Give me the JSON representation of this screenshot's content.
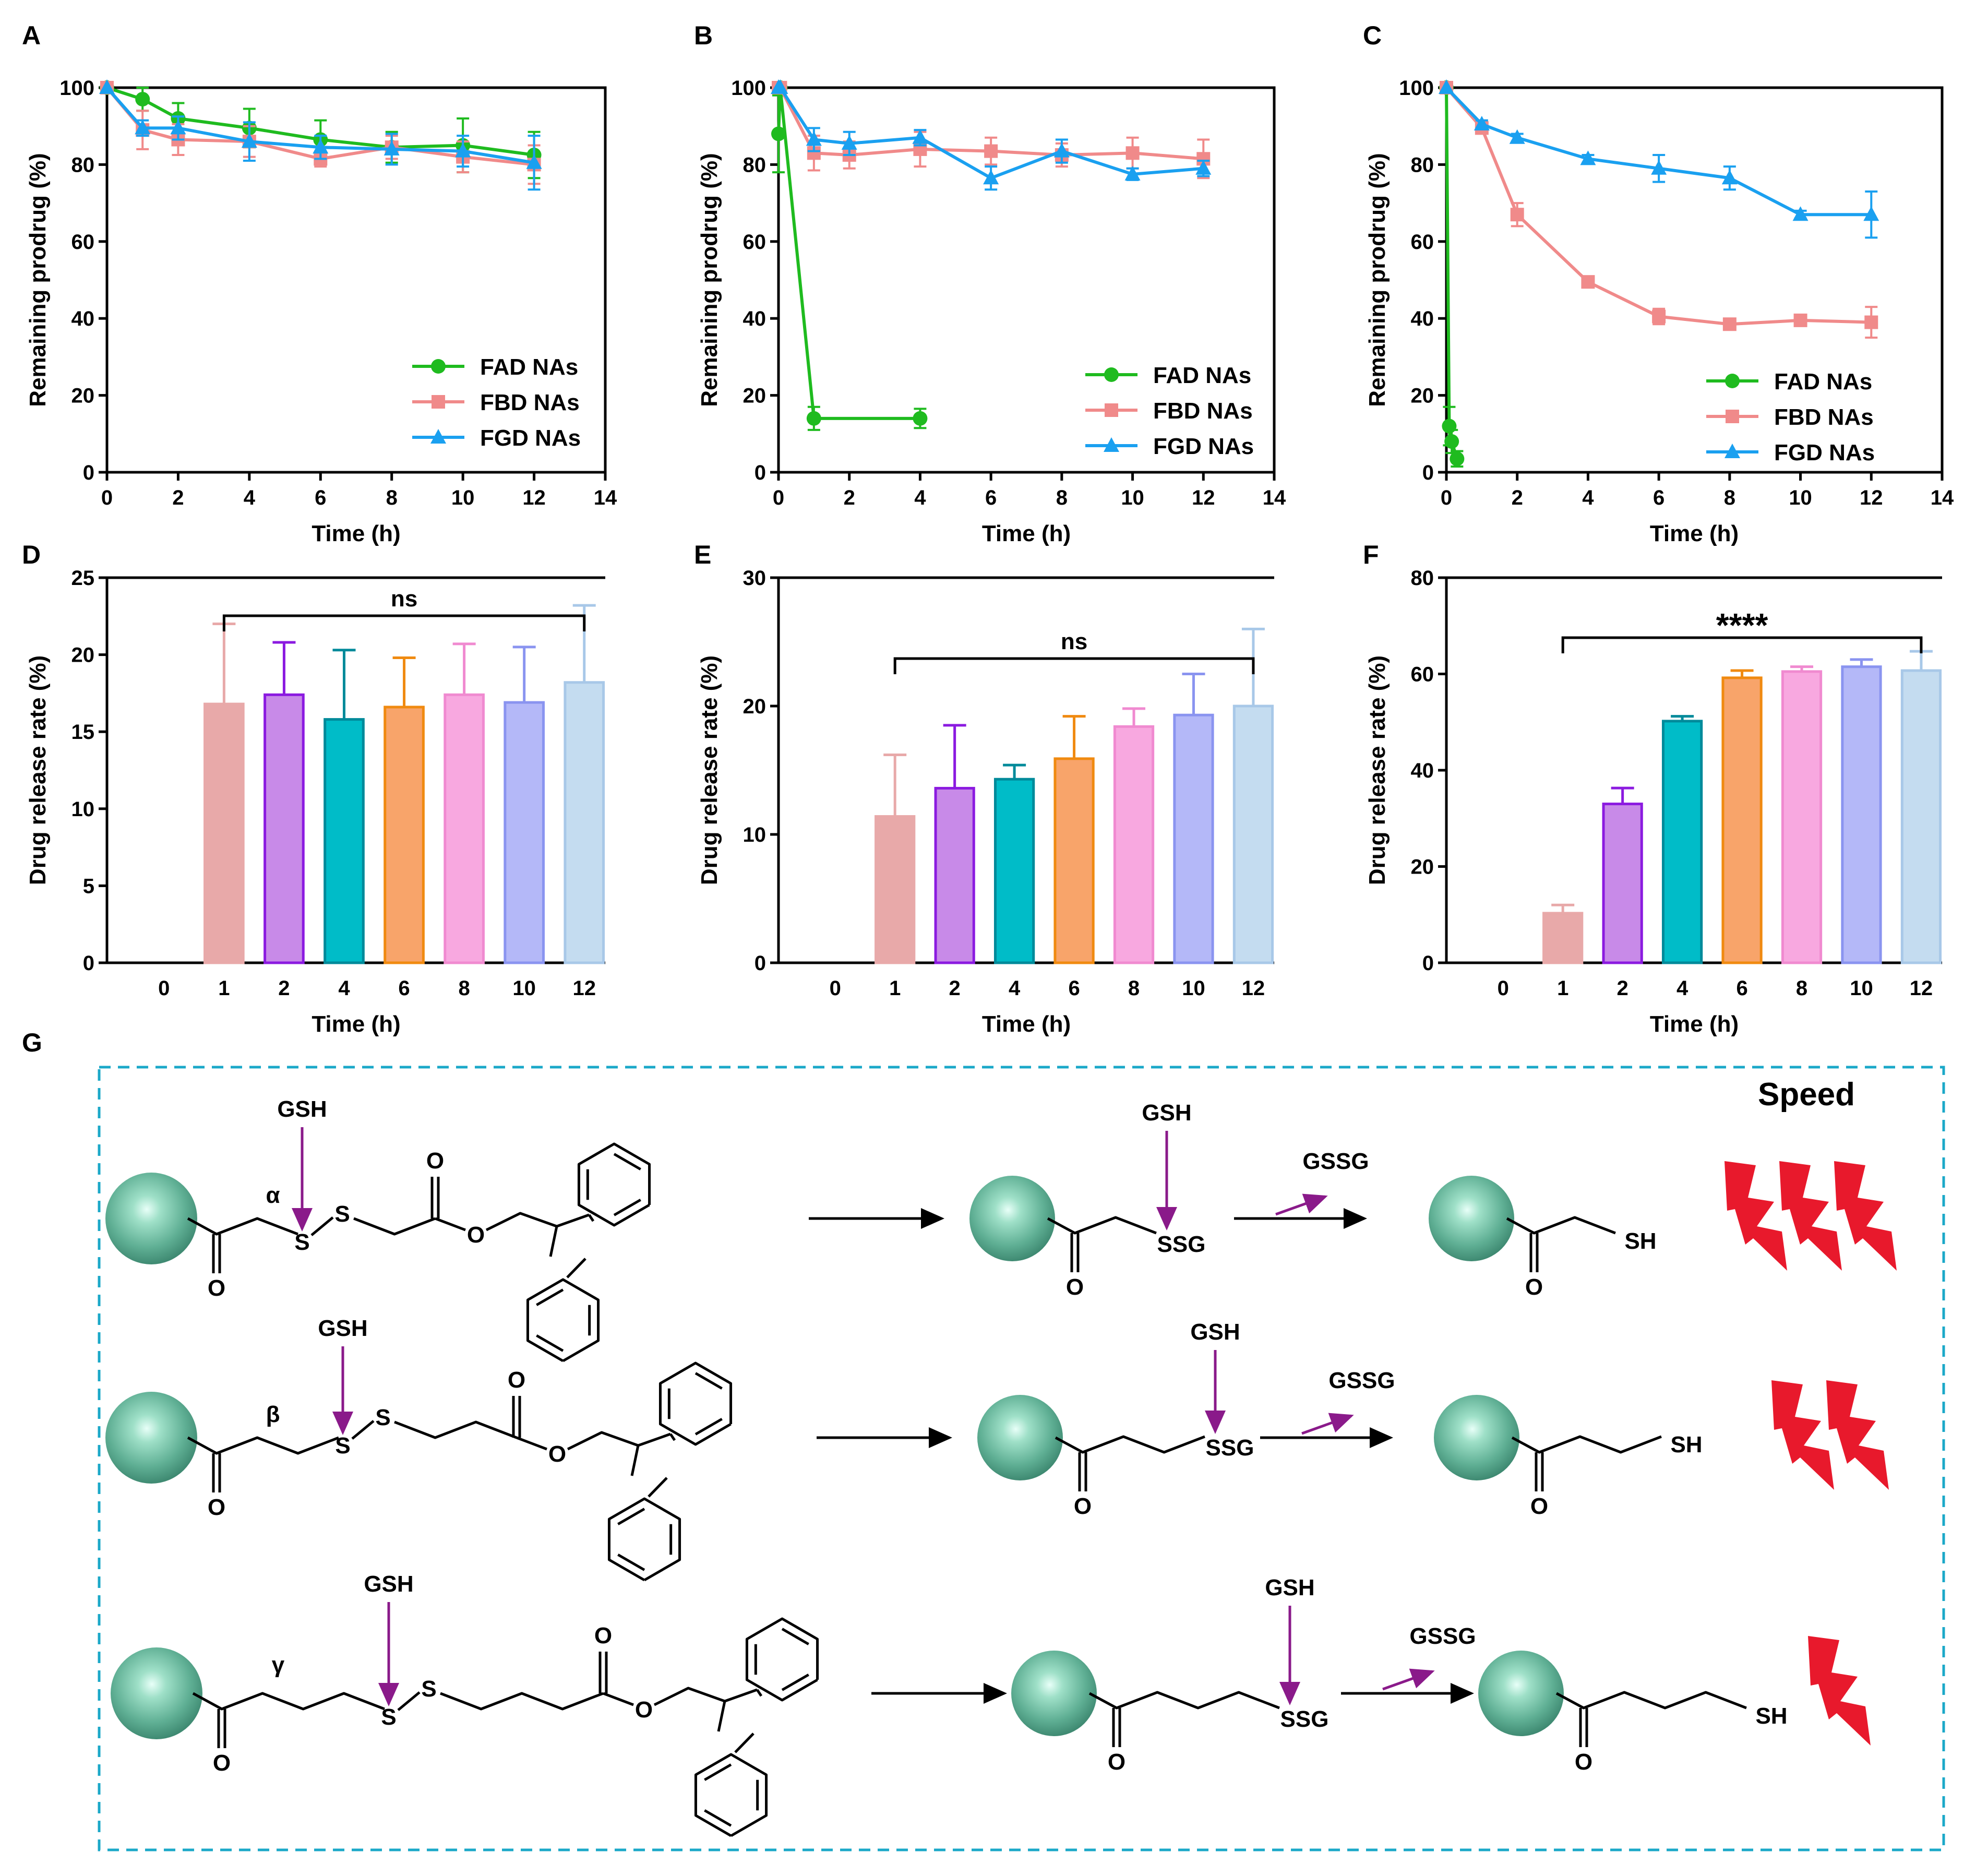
{
  "figure": {
    "panel_labels": [
      "A",
      "B",
      "C",
      "D",
      "E",
      "F",
      "G"
    ],
    "scheme": {
      "speed_label": "Speed",
      "rows": [
        {
          "position": "α",
          "gsh": "GSH",
          "ssg": "SSG",
          "gssg": "GSSG",
          "sh": "SH",
          "bolts": 3,
          "reactant": {
            "O": "O",
            "S1": "S",
            "S2": "S",
            "O2": "O"
          }
        },
        {
          "position": "β",
          "gsh": "GSH",
          "ssg": "SSG",
          "gssg": "GSSG",
          "sh": "SH",
          "bolts": 2,
          "reactant": {
            "O": "O",
            "S1": "S",
            "S2": "S",
            "O2": "O"
          }
        },
        {
          "position": "γ",
          "gsh": "GSH",
          "ssg": "SSG",
          "gssg": "GSSG",
          "sh": "SH",
          "bolts": 1,
          "reactant": {
            "O": "O",
            "S1": "S",
            "S2": "S",
            "O2": "O"
          }
        }
      ]
    },
    "colors": {
      "FAD": "#1fbb1f",
      "FBD": "#f08a8a",
      "FGD": "#1aa0f0",
      "scheme_border": "#1ba8c8",
      "gsh": "#8a1a8a",
      "greek": "#ff1a1a",
      "bolt": "#e8192c",
      "sphere": "#5faf94",
      "bars": [
        "#e8a9a9",
        "#c88ae8",
        "#00bcc8",
        "#f8a46a",
        "#f8a8e0",
        "#b4b8f8",
        "#c4dcf0"
      ],
      "bar_edges": [
        "#e8a9a9",
        "#8b1ae0",
        "#008a9a",
        "#f08a10",
        "#f08ad0",
        "#8a94f0",
        "#a8c8e8"
      ]
    }
  },
  "chart_data": [
    {
      "panel": "A",
      "type": "line",
      "xlabel": "Time (h)",
      "ylabel": "Remaining prodrug (%)",
      "xlim": [
        0,
        14
      ],
      "ylim": [
        0,
        100
      ],
      "xticks": [
        "0",
        "2",
        "4",
        "6",
        "8",
        "10",
        "12",
        "14"
      ],
      "yticks": [
        "0",
        "20",
        "40",
        "60",
        "80",
        "100"
      ],
      "legend": "bottom-right",
      "series": [
        {
          "name": "FAD NAs",
          "x": [
            0,
            1,
            2,
            4,
            6,
            8,
            10,
            12
          ],
          "y": [
            100,
            97,
            92,
            89.5,
            86.5,
            84.5,
            85,
            82.5
          ],
          "err": [
            0,
            3,
            4,
            5,
            5,
            4,
            7,
            6
          ]
        },
        {
          "name": "FBD NAs",
          "x": [
            0,
            1,
            2,
            4,
            6,
            8,
            10,
            12
          ],
          "y": [
            100,
            89,
            86.5,
            86,
            81.5,
            84.5,
            82,
            80
          ],
          "err": [
            0,
            5,
            4,
            4,
            2,
            3,
            4,
            5
          ]
        },
        {
          "name": "FGD NAs",
          "x": [
            0,
            1,
            2,
            4,
            6,
            8,
            10,
            12
          ],
          "y": [
            100,
            89.5,
            89.5,
            86,
            84.5,
            84,
            83.5,
            80.5
          ],
          "err": [
            0,
            2,
            3,
            5,
            3,
            4,
            4,
            7
          ]
        }
      ]
    },
    {
      "panel": "B",
      "type": "line",
      "xlabel": "Time (h)",
      "ylabel": "Remaining prodrug (%)",
      "xlim": [
        0,
        14
      ],
      "ylim": [
        0,
        100
      ],
      "xticks": [
        "0",
        "2",
        "4",
        "6",
        "8",
        "10",
        "12",
        "14"
      ],
      "yticks": [
        "0",
        "20",
        "40",
        "60",
        "80",
        "100"
      ],
      "legend": "bottom-right",
      "series": [
        {
          "name": "FAD NAs",
          "x": [
            0,
            0.05,
            1,
            4
          ],
          "y": [
            88,
            100,
            14,
            14
          ],
          "err": [
            10,
            0,
            3,
            2.5
          ]
        },
        {
          "name": "FBD NAs",
          "x": [
            0,
            0.05,
            1,
            2,
            4,
            6,
            8,
            10,
            12
          ],
          "y": [
            100,
            100,
            83,
            82.5,
            84,
            83.5,
            82.5,
            83,
            81.5
          ],
          "err": [
            0,
            0,
            4.5,
            3.5,
            4.5,
            3.5,
            3,
            4,
            5
          ]
        },
        {
          "name": "FGD NAs",
          "x": [
            0,
            0.05,
            1,
            2,
            4,
            6,
            8,
            10,
            12
          ],
          "y": [
            100,
            100,
            86.5,
            85.5,
            87,
            76.5,
            83.5,
            77.5,
            79
          ],
          "err": [
            0,
            0,
            3,
            3,
            2,
            3,
            3,
            1.5,
            2
          ]
        }
      ]
    },
    {
      "panel": "C",
      "type": "line",
      "xlabel": "Time (h)",
      "ylabel": "Remaining prodrug (%)",
      "xlim": [
        0,
        14
      ],
      "ylim": [
        0,
        100
      ],
      "xticks": [
        "0",
        "2",
        "4",
        "6",
        "8",
        "10",
        "12",
        "14"
      ],
      "yticks": [
        "0",
        "20",
        "40",
        "60",
        "80",
        "100"
      ],
      "legend": "bottom-right",
      "series": [
        {
          "name": "FAD NAs",
          "x": [
            0,
            0.08,
            0.15,
            0.3
          ],
          "y": [
            100,
            12,
            8,
            3.5
          ],
          "err": [
            0,
            5,
            3,
            2
          ]
        },
        {
          "name": "FBD NAs",
          "x": [
            0,
            1,
            2,
            4,
            6,
            8,
            10,
            12
          ],
          "y": [
            100,
            89.5,
            67,
            49.5,
            40.5,
            38.5,
            39.5,
            39
          ],
          "err": [
            0,
            1,
            3,
            1,
            2,
            1,
            1,
            4
          ]
        },
        {
          "name": "FGD NAs",
          "x": [
            0,
            1,
            2,
            4,
            6,
            8,
            10,
            12
          ],
          "y": [
            100,
            90.5,
            87,
            81.5,
            79,
            76.5,
            67,
            67
          ],
          "err": [
            0,
            1,
            1,
            1,
            3.5,
            3,
            1,
            6
          ]
        }
      ]
    },
    {
      "panel": "D",
      "type": "bar",
      "xlabel": "Time (h)",
      "ylabel": "Drug release rate (%)",
      "categories": [
        "0",
        "1",
        "2",
        "4",
        "6",
        "8",
        "10",
        "12"
      ],
      "values": [
        0,
        16.8,
        17.4,
        15.8,
        16.6,
        17.4,
        16.9,
        18.2
      ],
      "err": [
        0,
        5.2,
        3.4,
        4.5,
        3.2,
        3.3,
        3.6,
        5.0
      ],
      "ylim": [
        0,
        25
      ],
      "yticks": [
        "0",
        "5",
        "10",
        "15",
        "20",
        "25"
      ],
      "significance": "ns"
    },
    {
      "panel": "E",
      "type": "bar",
      "xlabel": "Time (h)",
      "ylabel": "Drug release rate (%)",
      "categories": [
        "0",
        "1",
        "2",
        "4",
        "6",
        "8",
        "10",
        "12"
      ],
      "values": [
        0,
        11.4,
        13.6,
        14.3,
        15.9,
        18.4,
        19.3,
        20.0
      ],
      "err": [
        0,
        4.8,
        4.9,
        1.1,
        3.3,
        1.4,
        3.2,
        6.0
      ],
      "ylim": [
        0,
        30
      ],
      "yticks": [
        "0",
        "10",
        "20",
        "30"
      ],
      "significance": "ns"
    },
    {
      "panel": "F",
      "type": "bar",
      "xlabel": "Time (h)",
      "ylabel": "Drug release rate (%)",
      "categories": [
        "0",
        "1",
        "2",
        "4",
        "6",
        "8",
        "10",
        "12"
      ],
      "values": [
        0,
        10.3,
        33.0,
        50.2,
        59.2,
        60.5,
        61.5,
        60.7
      ],
      "err": [
        0,
        1.7,
        3.3,
        1.0,
        1.5,
        1.0,
        1.5,
        4.0
      ],
      "ylim": [
        0,
        80
      ],
      "yticks": [
        "0",
        "20",
        "40",
        "60",
        "80"
      ],
      "significance": "****"
    }
  ]
}
